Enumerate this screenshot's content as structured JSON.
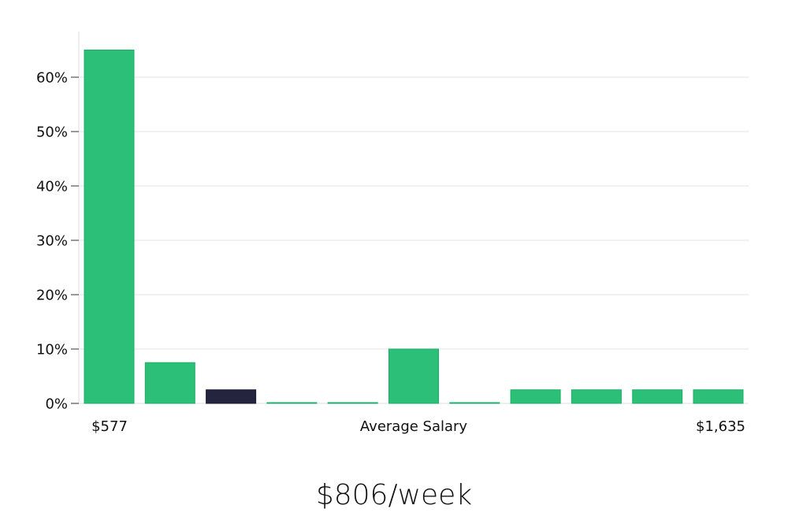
{
  "chart_data": {
    "type": "bar",
    "title": "",
    "xlabel": "Average Salary",
    "ylabel": "",
    "x_min_label": "$577",
    "x_max_label": "$1,635",
    "yticks": [
      0,
      10,
      20,
      30,
      40,
      50,
      60
    ],
    "ytick_labels": [
      "0%",
      "10%",
      "20%",
      "30%",
      "40%",
      "50%",
      "60%"
    ],
    "ylim": [
      0,
      68
    ],
    "values": [
      65,
      7.5,
      2.5,
      0.1,
      0.1,
      10,
      0.1,
      2.5,
      2.5,
      2.5,
      2.5
    ],
    "highlight_index": 2,
    "colors": {
      "bar": "#2bbf78",
      "bar_edge": "#1fae69",
      "highlight": "#25243f",
      "grid": "#e3e3e3",
      "axis": "#dddddd"
    },
    "grid": true,
    "legend": "none"
  },
  "salary": {
    "value": "$806/week"
  }
}
